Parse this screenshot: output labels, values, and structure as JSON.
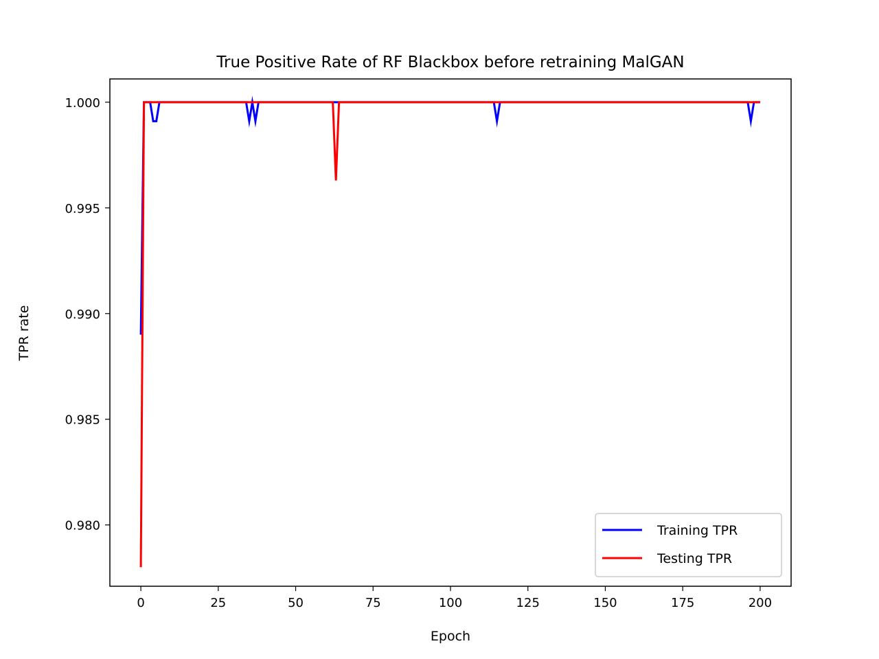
{
  "chart_data": {
    "type": "line",
    "title": "True Positive Rate of RF Blackbox before retraining MalGAN",
    "xlabel": "Epoch",
    "ylabel": "TPR rate",
    "xlim": [
      -10,
      210
    ],
    "ylim": [
      0.9771,
      1.0011
    ],
    "xticks": [
      0,
      25,
      50,
      75,
      100,
      125,
      150,
      175,
      200
    ],
    "xtick_labels": [
      "0",
      "25",
      "50",
      "75",
      "100",
      "125",
      "150",
      "175",
      "200"
    ],
    "yticks": [
      0.98,
      0.985,
      0.99,
      0.995,
      1.0
    ],
    "ytick_labels": [
      "0.980",
      "0.985",
      "0.990",
      "0.995",
      "1.000"
    ],
    "legend_position": "lower-right",
    "grid": false,
    "series": [
      {
        "name": "Training TPR",
        "color": "#0000ff",
        "x": [
          0,
          1,
          2,
          3,
          4,
          5,
          6,
          7,
          33,
          34,
          35,
          36,
          37,
          38,
          61,
          62,
          63,
          64,
          114,
          115,
          116,
          196,
          197,
          198,
          200
        ],
        "y": [
          0.989,
          1.0,
          1.0,
          1.0,
          0.9991,
          0.9991,
          1.0,
          1.0,
          1.0,
          1.0,
          0.9991,
          1.0,
          0.9991,
          1.0,
          1.0,
          1.0,
          1.0,
          1.0,
          1.0,
          0.9991,
          1.0,
          1.0,
          0.9991,
          1.0,
          1.0
        ]
      },
      {
        "name": "Testing TPR",
        "color": "#ff0000",
        "x": [
          0,
          1,
          2,
          61,
          62,
          63,
          64,
          65,
          200
        ],
        "y": [
          0.978,
          1.0,
          1.0,
          1.0,
          1.0,
          0.9963,
          1.0,
          1.0,
          1.0
        ]
      }
    ]
  }
}
